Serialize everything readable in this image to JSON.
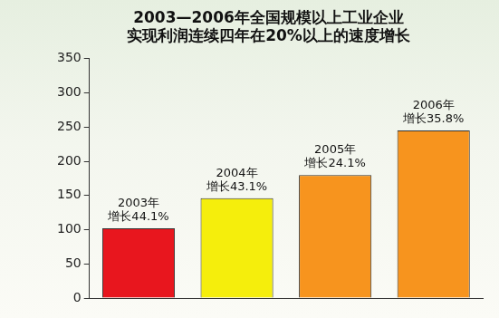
{
  "chart_data": {
    "type": "bar",
    "title": [
      "2003—2006年全国规模以上工业企业",
      "实现利润连续四年在20%以上的速度增长"
    ],
    "categories": [
      "2003年",
      "2004年",
      "2005年",
      "2006年"
    ],
    "annotations": [
      "增长44.1%",
      "增长43.1%",
      "增长24.1%",
      "增长35.8%"
    ],
    "values": [
      102,
      146,
      180,
      245
    ],
    "colors": [
      "#e8161e",
      "#f5ee0c",
      "#f7941e",
      "#f7941e"
    ],
    "ylim": [
      0,
      350
    ],
    "yticks": [
      0,
      50,
      100,
      150,
      200,
      250,
      300,
      350
    ],
    "grid": false,
    "tick_labels": "y"
  }
}
